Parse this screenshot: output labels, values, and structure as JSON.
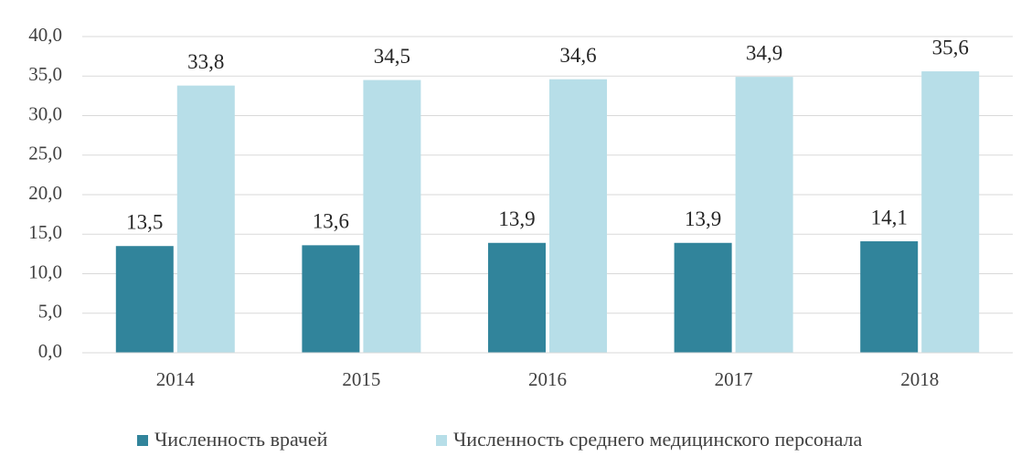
{
  "chart_data": {
    "type": "bar",
    "categories": [
      "2014",
      "2015",
      "2016",
      "2017",
      "2018"
    ],
    "series": [
      {
        "name": "Численность врачей",
        "color": "#31849b",
        "values": [
          13.5,
          13.6,
          13.9,
          13.9,
          14.1
        ],
        "value_labels": [
          "13,5",
          "13,6",
          "13,9",
          "13,9",
          "14,1"
        ]
      },
      {
        "name": "Численность среднего медицинского персонала",
        "color": "#b7dee8",
        "values": [
          33.8,
          34.5,
          34.6,
          34.9,
          35.6
        ],
        "value_labels": [
          "33,8",
          "34,5",
          "34,6",
          "34,9",
          "35,6"
        ]
      }
    ],
    "ylim": [
      0,
      40
    ],
    "yticks": [
      {
        "value": 0,
        "label": "0,0"
      },
      {
        "value": 5,
        "label": "5,0"
      },
      {
        "value": 10,
        "label": "10,0"
      },
      {
        "value": 15,
        "label": "15,0"
      },
      {
        "value": 20,
        "label": "20,0"
      },
      {
        "value": 25,
        "label": "25,0"
      },
      {
        "value": 30,
        "label": "30,0"
      },
      {
        "value": 35,
        "label": "35,0"
      },
      {
        "value": 40,
        "label": "40,0"
      }
    ],
    "grid": true,
    "legend": "bottom"
  }
}
